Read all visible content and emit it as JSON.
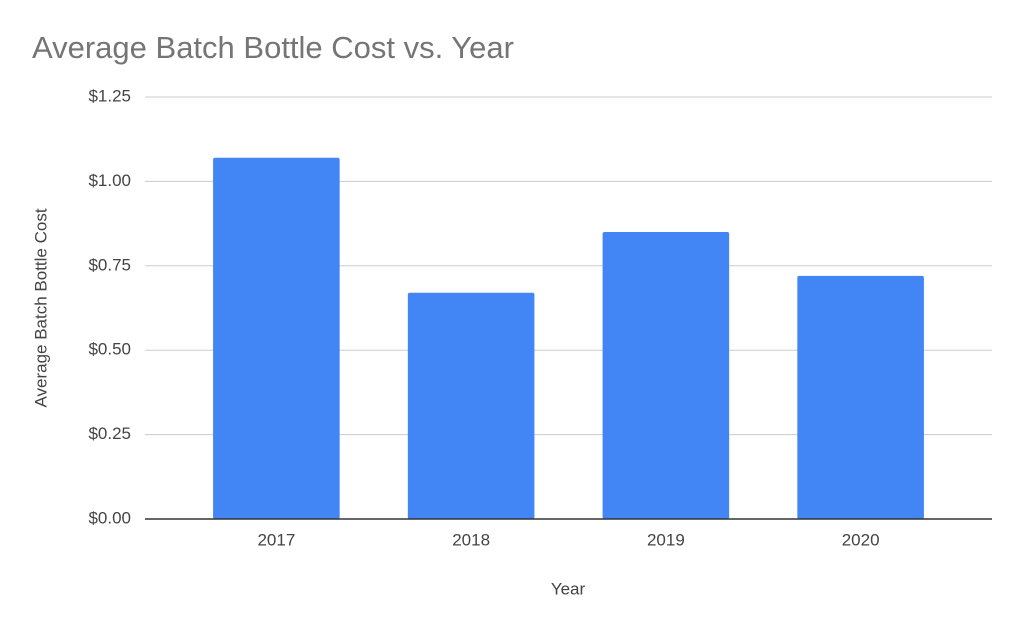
{
  "chart_data": {
    "type": "bar",
    "title": "Average Batch Bottle Cost vs. Year",
    "x_label": "Year",
    "y_label": "Average Batch Bottle Cost",
    "categories": [
      "2017",
      "2018",
      "2019",
      "2020"
    ],
    "values": [
      1.07,
      0.67,
      0.85,
      0.72
    ],
    "color": "#4285f4",
    "ylim": [
      0,
      1.25
    ],
    "yticks": [
      {
        "value": 0,
        "label": "$0.00"
      },
      {
        "value": 0.25,
        "label": "$0.25"
      },
      {
        "value": 0.5,
        "label": "$0.50"
      },
      {
        "value": 0.75,
        "label": "$0.75"
      },
      {
        "value": 1,
        "label": "$1.00"
      },
      {
        "value": 1.25,
        "label": "$1.25"
      }
    ],
    "grid": true
  }
}
